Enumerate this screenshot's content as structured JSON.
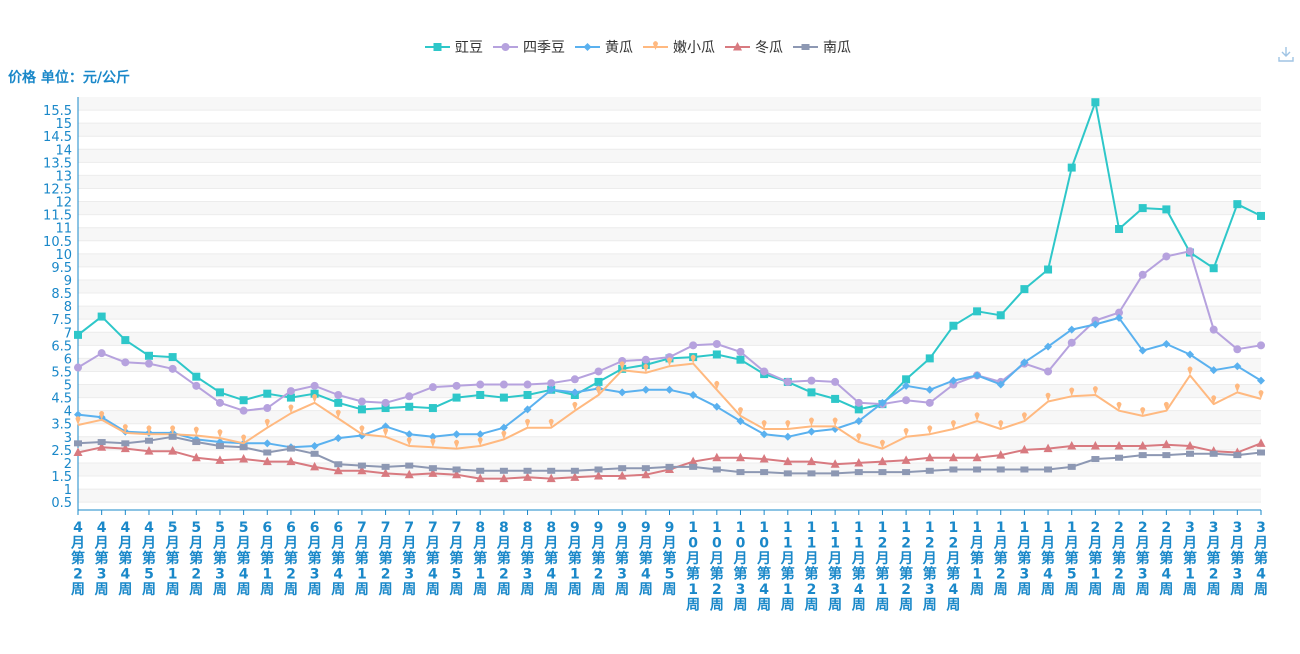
{
  "unit_label": "价格 单位：元/公斤",
  "chart_data": {
    "type": "line",
    "title": "",
    "xlabel": "",
    "ylabel": "价格 单位：元/公斤",
    "ylim": [
      0.2,
      16
    ],
    "y_ticks": [
      0.5,
      1,
      1.5,
      2,
      2.5,
      3,
      3.5,
      4,
      4.5,
      5,
      5.5,
      6,
      6.5,
      7,
      7.5,
      8,
      8.5,
      9,
      9.5,
      10,
      10.5,
      11,
      11.5,
      12,
      12.5,
      13,
      13.5,
      14,
      14.5,
      15,
      15.5
    ],
    "y_tick_labels": [
      "0.5",
      "1",
      "1.5",
      "2",
      "2.5",
      "3",
      "3.5",
      "4",
      "4.5",
      "5",
      "5.5",
      "6",
      "6.5",
      "7",
      "7.5",
      "8",
      "8.5",
      "9",
      "9.5",
      "10",
      "10.5",
      "11",
      "11.5",
      "12",
      "12.5",
      "13",
      "13.5",
      "14",
      "14.5",
      "15",
      "15.5"
    ],
    "grid": true,
    "legend_position": "top-center",
    "categories": [
      "4月第2周",
      "4月第3周",
      "4月第4周",
      "4月第5周",
      "5月第1周",
      "5月第2周",
      "5月第3周",
      "5月第4周",
      "6月第1周",
      "6月第2周",
      "6月第3周",
      "6月第4周",
      "7月第1周",
      "7月第2周",
      "7月第3周",
      "7月第4周",
      "7月第5周",
      "8月第1周",
      "8月第2周",
      "8月第3周",
      "8月第4周",
      "9月第1周",
      "9月第2周",
      "9月第3周",
      "9月第4周",
      "9月第5周",
      "10月第1周",
      "10月第2周",
      "10月第3周",
      "10月第4周",
      "11月第1周",
      "11月第2周",
      "11月第3周",
      "11月第4周",
      "12月第1周",
      "12月第2周",
      "12月第3周",
      "12月第4周",
      "1月第1周",
      "1月第2周",
      "1月第3周",
      "1月第4周",
      "1月第5周",
      "2月第1周",
      "2月第2周",
      "2月第3周",
      "2月第4周",
      "3月第1周",
      "3月第2周",
      "3月第3周",
      "3月第4周"
    ],
    "series": [
      {
        "name": "豇豆",
        "color": "#2ec7c9",
        "marker": "square",
        "values": [
          6.9,
          7.6,
          6.7,
          6.1,
          6.05,
          5.3,
          4.7,
          4.4,
          4.65,
          4.5,
          4.65,
          4.3,
          4.05,
          4.1,
          4.15,
          4.1,
          4.5,
          4.6,
          4.5,
          4.6,
          4.8,
          4.6,
          5.1,
          5.6,
          5.75,
          6.0,
          6.05,
          6.15,
          5.95,
          5.4,
          5.1,
          4.7,
          4.45,
          4.05,
          4.25,
          5.2,
          6.0,
          7.25,
          7.8,
          7.65,
          8.65,
          9.4,
          13.3,
          15.8,
          10.95,
          11.75,
          11.7,
          10.05,
          9.45,
          11.9,
          11.45
        ]
      },
      {
        "name": "四季豆",
        "color": "#b6a2de",
        "marker": "circle",
        "values": [
          5.65,
          6.2,
          5.85,
          5.8,
          5.6,
          4.95,
          4.3,
          4.0,
          4.1,
          4.75,
          4.95,
          4.6,
          4.35,
          4.3,
          4.55,
          4.9,
          4.95,
          5.0,
          5.0,
          5.0,
          5.05,
          5.2,
          5.5,
          5.9,
          5.95,
          6.05,
          6.5,
          6.55,
          6.25,
          5.5,
          5.1,
          5.15,
          5.1,
          4.3,
          4.25,
          4.4,
          4.3,
          5.0,
          5.35,
          5.1,
          5.8,
          5.5,
          6.6,
          7.45,
          7.75,
          9.2,
          9.9,
          10.1,
          7.1,
          6.35,
          6.5
        ]
      },
      {
        "name": "黄瓜",
        "color": "#5ab1ef",
        "marker": "diamond",
        "values": [
          3.85,
          3.75,
          3.2,
          3.15,
          3.15,
          2.9,
          2.8,
          2.75,
          2.75,
          2.6,
          2.65,
          2.95,
          3.05,
          3.4,
          3.1,
          3.0,
          3.1,
          3.1,
          3.35,
          4.05,
          4.8,
          4.7,
          4.85,
          4.7,
          4.8,
          4.8,
          4.6,
          4.15,
          3.6,
          3.1,
          3.0,
          3.2,
          3.3,
          3.6,
          4.3,
          4.95,
          4.8,
          5.15,
          5.35,
          5.0,
          5.85,
          6.45,
          7.1,
          7.3,
          7.55,
          6.3,
          6.55,
          6.15,
          5.55,
          5.7,
          5.15
        ]
      },
      {
        "name": "嫩小瓜",
        "color": "#ffb980",
        "marker": "pin",
        "values": [
          3.45,
          3.65,
          3.15,
          3.1,
          3.1,
          3.05,
          2.95,
          2.75,
          3.35,
          3.9,
          4.3,
          3.7,
          3.1,
          3.0,
          2.65,
          2.6,
          2.55,
          2.65,
          2.9,
          3.35,
          3.35,
          4.0,
          4.6,
          5.55,
          5.45,
          5.7,
          5.8,
          4.8,
          3.8,
          3.3,
          3.3,
          3.4,
          3.4,
          2.8,
          2.55,
          3.0,
          3.1,
          3.3,
          3.6,
          3.3,
          3.6,
          4.35,
          4.55,
          4.6,
          4.0,
          3.8,
          4.0,
          5.35,
          4.25,
          4.7,
          4.45
        ]
      },
      {
        "name": "冬瓜",
        "color": "#d87a80",
        "marker": "triangle",
        "values": [
          2.4,
          2.6,
          2.55,
          2.45,
          2.45,
          2.2,
          2.1,
          2.15,
          2.05,
          2.05,
          1.85,
          1.7,
          1.7,
          1.6,
          1.55,
          1.6,
          1.55,
          1.4,
          1.4,
          1.45,
          1.4,
          1.45,
          1.5,
          1.5,
          1.55,
          1.75,
          2.05,
          2.2,
          2.2,
          2.15,
          2.05,
          2.05,
          1.95,
          2.0,
          2.05,
          2.1,
          2.2,
          2.2,
          2.2,
          2.3,
          2.5,
          2.55,
          2.65,
          2.65,
          2.65,
          2.65,
          2.7,
          2.65,
          2.45,
          2.4,
          2.75
        ]
      },
      {
        "name": "南瓜",
        "color": "#8d98b3",
        "marker": "rect",
        "values": [
          2.75,
          2.8,
          2.75,
          2.85,
          3.0,
          2.8,
          2.65,
          2.6,
          2.4,
          2.55,
          2.35,
          1.95,
          1.9,
          1.85,
          1.9,
          1.8,
          1.75,
          1.7,
          1.7,
          1.7,
          1.7,
          1.7,
          1.75,
          1.8,
          1.8,
          1.85,
          1.85,
          1.75,
          1.65,
          1.65,
          1.6,
          1.6,
          1.6,
          1.65,
          1.65,
          1.65,
          1.7,
          1.75,
          1.75,
          1.75,
          1.75,
          1.75,
          1.85,
          2.15,
          2.2,
          2.3,
          2.3,
          2.35,
          2.35,
          2.3,
          2.4
        ]
      }
    ]
  }
}
